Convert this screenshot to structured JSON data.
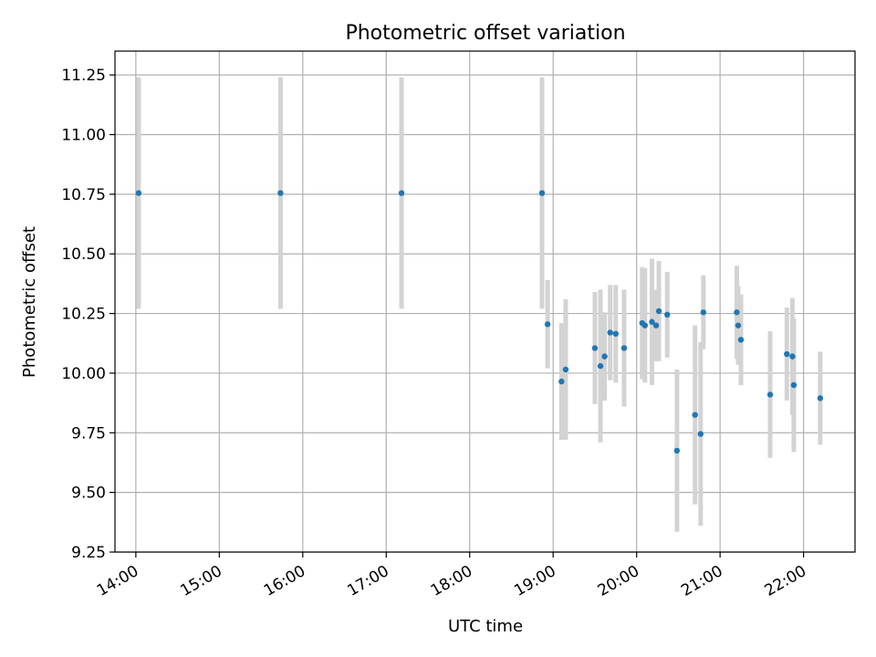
{
  "chart_data": {
    "type": "scatter",
    "title": "Photometric offset variation",
    "xlabel": "UTC time",
    "ylabel": "Photometric offset",
    "xlim": [
      "13:45",
      "22:37"
    ],
    "ylim": [
      9.25,
      11.35
    ],
    "xticks": [
      "14:00",
      "15:00",
      "16:00",
      "17:00",
      "18:00",
      "19:00",
      "20:00",
      "21:00",
      "22:00"
    ],
    "yticks": [
      "9.25",
      "9.50",
      "9.75",
      "10.00",
      "10.25",
      "10.50",
      "10.75",
      "11.00",
      "11.25"
    ],
    "grid": true,
    "marker_color": "#1f77b4",
    "errorbar_color": "#d3d3d3",
    "series": [
      {
        "points": [
          {
            "x": "14:02",
            "y": 10.755,
            "err": 0.485
          },
          {
            "x": "15:44",
            "y": 10.755,
            "err": 0.485
          },
          {
            "x": "17:11",
            "y": 10.755,
            "err": 0.485
          },
          {
            "x": "18:52",
            "y": 10.755,
            "err": 0.485
          },
          {
            "x": "18:56",
            "y": 10.205,
            "err": 0.185
          },
          {
            "x": "19:06",
            "y": 9.965,
            "err": 0.245
          },
          {
            "x": "19:09",
            "y": 10.015,
            "err": 0.295
          },
          {
            "x": "19:30",
            "y": 10.105,
            "err": 0.235
          },
          {
            "x": "19:34",
            "y": 10.03,
            "err": 0.32
          },
          {
            "x": "19:37",
            "y": 10.07,
            "err": 0.185
          },
          {
            "x": "19:41",
            "y": 10.17,
            "err": 0.2
          },
          {
            "x": "19:45",
            "y": 10.165,
            "err": 0.205
          },
          {
            "x": "19:51",
            "y": 10.105,
            "err": 0.245
          },
          {
            "x": "20:04",
            "y": 10.21,
            "err": 0.235
          },
          {
            "x": "20:06",
            "y": 10.2,
            "err": 0.24
          },
          {
            "x": "20:11",
            "y": 10.215,
            "err": 0.265
          },
          {
            "x": "20:14",
            "y": 10.2,
            "err": 0.15
          },
          {
            "x": "20:16",
            "y": 10.26,
            "err": 0.21
          },
          {
            "x": "20:22",
            "y": 10.245,
            "err": 0.18
          },
          {
            "x": "20:29",
            "y": 9.675,
            "err": 0.34
          },
          {
            "x": "20:42",
            "y": 9.825,
            "err": 0.375
          },
          {
            "x": "20:46",
            "y": 9.745,
            "err": 0.385
          },
          {
            "x": "20:48",
            "y": 10.255,
            "err": 0.155
          },
          {
            "x": "21:12",
            "y": 10.255,
            "err": 0.195
          },
          {
            "x": "21:13",
            "y": 10.2,
            "err": 0.165
          },
          {
            "x": "21:15",
            "y": 10.14,
            "err": 0.19
          },
          {
            "x": "21:36",
            "y": 9.91,
            "err": 0.265
          },
          {
            "x": "21:48",
            "y": 10.08,
            "err": 0.195
          },
          {
            "x": "21:52",
            "y": 10.07,
            "err": 0.245
          },
          {
            "x": "21:53",
            "y": 9.95,
            "err": 0.28
          },
          {
            "x": "22:12",
            "y": 9.895,
            "err": 0.195
          }
        ]
      }
    ]
  }
}
